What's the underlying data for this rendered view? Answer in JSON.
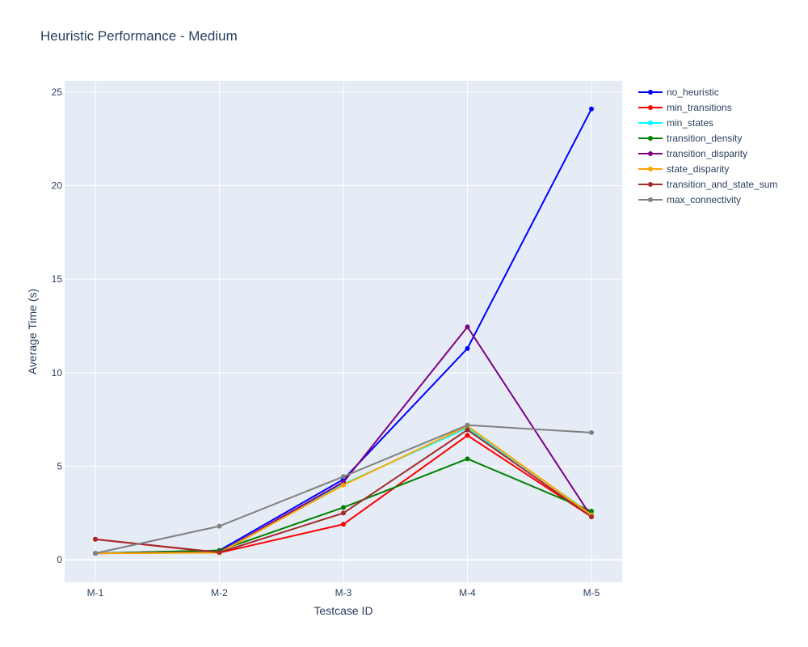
{
  "chart_data": {
    "type": "line",
    "title": "Heuristic Performance - Medium",
    "xlabel": "Testcase ID",
    "ylabel": "Average Time (s)",
    "categories": [
      "M-1",
      "M-2",
      "M-3",
      "M-4",
      "M-5"
    ],
    "ylim": [
      -1.2,
      25.6
    ],
    "yticks": [
      0,
      5,
      10,
      15,
      20,
      25
    ],
    "grid": true,
    "legend_position": "top-right",
    "series": [
      {
        "name": "no_heuristic",
        "color": "#0000ff",
        "values": [
          0.35,
          0.5,
          4.3,
          11.3,
          24.1
        ]
      },
      {
        "name": "min_transitions",
        "color": "#ff0000",
        "values": [
          1.1,
          0.38,
          1.9,
          6.65,
          2.3
        ]
      },
      {
        "name": "min_states",
        "color": "#00ffff",
        "values": [
          0.35,
          0.42,
          4.05,
          7.05,
          2.45
        ]
      },
      {
        "name": "transition_density",
        "color": "#008000",
        "values": [
          0.35,
          0.5,
          2.8,
          5.4,
          2.6
        ]
      },
      {
        "name": "transition_disparity",
        "color": "#800080",
        "values": [
          0.35,
          0.4,
          4.15,
          12.45,
          2.3
        ]
      },
      {
        "name": "state_disparity",
        "color": "#ffa500",
        "values": [
          0.35,
          0.38,
          4.0,
          7.15,
          2.4
        ]
      },
      {
        "name": "transition_and_state_sum",
        "color": "#a52a2a",
        "values": [
          1.1,
          0.4,
          2.5,
          6.95,
          2.3
        ]
      },
      {
        "name": "max_connectivity",
        "color": "#808080",
        "values": [
          0.35,
          1.8,
          4.45,
          7.2,
          6.8
        ]
      }
    ]
  }
}
